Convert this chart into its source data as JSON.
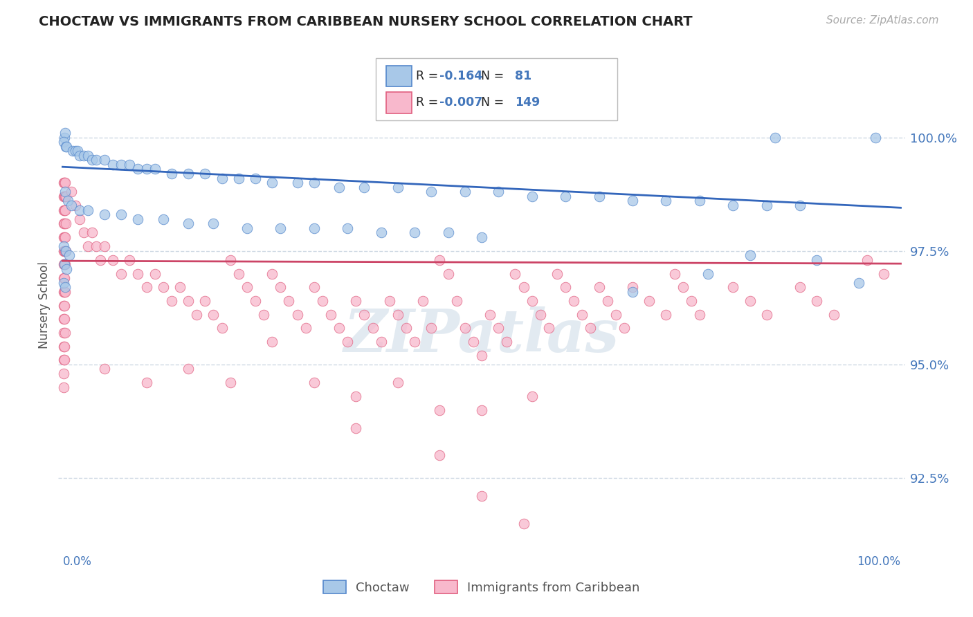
{
  "title": "CHOCTAW VS IMMIGRANTS FROM CARIBBEAN NURSERY SCHOOL CORRELATION CHART",
  "source": "Source: ZipAtlas.com",
  "ylabel": "Nursery School",
  "ytick_labels": [
    "92.5%",
    "95.0%",
    "97.5%",
    "100.0%"
  ],
  "ytick_values": [
    0.925,
    0.95,
    0.975,
    1.0
  ],
  "ymin": 0.908,
  "ymax": 1.018,
  "xmin": -0.005,
  "xmax": 1.005,
  "blue_r": -0.164,
  "blue_n": 81,
  "pink_r": -0.007,
  "pink_n": 149,
  "blue_fill": "#a8c8e8",
  "blue_edge": "#5588cc",
  "pink_fill": "#f8b8cc",
  "pink_edge": "#e06080",
  "blue_line_color": "#3366bb",
  "pink_line_color": "#cc4466",
  "watermark_color": "#d0dde8",
  "bg": "#ffffff",
  "grid_color": "#c8d4e0",
  "title_color": "#222222",
  "axis_tick_color": "#4477bb",
  "blue_line_y0": 0.9935,
  "blue_line_y1": 0.9845,
  "pink_line_y0": 0.9728,
  "pink_line_y1": 0.9722,
  "blue_dots": [
    [
      0.002,
      1.0
    ],
    [
      0.003,
      1.001
    ],
    [
      0.85,
      1.0
    ],
    [
      0.97,
      1.0
    ],
    [
      0.001,
      0.999
    ],
    [
      0.004,
      0.998
    ],
    [
      0.005,
      0.998
    ],
    [
      0.012,
      0.997
    ],
    [
      0.015,
      0.997
    ],
    [
      0.018,
      0.997
    ],
    [
      0.02,
      0.996
    ],
    [
      0.025,
      0.996
    ],
    [
      0.03,
      0.996
    ],
    [
      0.035,
      0.995
    ],
    [
      0.04,
      0.995
    ],
    [
      0.05,
      0.995
    ],
    [
      0.06,
      0.994
    ],
    [
      0.07,
      0.994
    ],
    [
      0.08,
      0.994
    ],
    [
      0.09,
      0.993
    ],
    [
      0.1,
      0.993
    ],
    [
      0.11,
      0.993
    ],
    [
      0.13,
      0.992
    ],
    [
      0.15,
      0.992
    ],
    [
      0.17,
      0.992
    ],
    [
      0.19,
      0.991
    ],
    [
      0.21,
      0.991
    ],
    [
      0.23,
      0.991
    ],
    [
      0.25,
      0.99
    ],
    [
      0.28,
      0.99
    ],
    [
      0.3,
      0.99
    ],
    [
      0.33,
      0.989
    ],
    [
      0.36,
      0.989
    ],
    [
      0.4,
      0.989
    ],
    [
      0.44,
      0.988
    ],
    [
      0.48,
      0.988
    ],
    [
      0.52,
      0.988
    ],
    [
      0.56,
      0.987
    ],
    [
      0.6,
      0.987
    ],
    [
      0.64,
      0.987
    ],
    [
      0.68,
      0.986
    ],
    [
      0.72,
      0.986
    ],
    [
      0.76,
      0.986
    ],
    [
      0.8,
      0.985
    ],
    [
      0.84,
      0.985
    ],
    [
      0.88,
      0.985
    ],
    [
      0.003,
      0.988
    ],
    [
      0.006,
      0.986
    ],
    [
      0.01,
      0.985
    ],
    [
      0.02,
      0.984
    ],
    [
      0.03,
      0.984
    ],
    [
      0.05,
      0.983
    ],
    [
      0.07,
      0.983
    ],
    [
      0.09,
      0.982
    ],
    [
      0.12,
      0.982
    ],
    [
      0.15,
      0.981
    ],
    [
      0.18,
      0.981
    ],
    [
      0.22,
      0.98
    ],
    [
      0.26,
      0.98
    ],
    [
      0.3,
      0.98
    ],
    [
      0.34,
      0.98
    ],
    [
      0.38,
      0.979
    ],
    [
      0.42,
      0.979
    ],
    [
      0.46,
      0.979
    ],
    [
      0.5,
      0.978
    ],
    [
      0.001,
      0.976
    ],
    [
      0.004,
      0.975
    ],
    [
      0.008,
      0.974
    ],
    [
      0.82,
      0.974
    ],
    [
      0.9,
      0.973
    ],
    [
      0.002,
      0.972
    ],
    [
      0.005,
      0.971
    ],
    [
      0.77,
      0.97
    ],
    [
      0.95,
      0.968
    ],
    [
      0.001,
      0.968
    ],
    [
      0.003,
      0.967
    ],
    [
      0.68,
      0.966
    ]
  ],
  "pink_dots": [
    [
      0.001,
      0.99
    ],
    [
      0.002,
      0.99
    ],
    [
      0.003,
      0.99
    ],
    [
      0.001,
      0.987
    ],
    [
      0.002,
      0.987
    ],
    [
      0.003,
      0.987
    ],
    [
      0.004,
      0.987
    ],
    [
      0.001,
      0.984
    ],
    [
      0.002,
      0.984
    ],
    [
      0.003,
      0.984
    ],
    [
      0.001,
      0.981
    ],
    [
      0.002,
      0.981
    ],
    [
      0.004,
      0.981
    ],
    [
      0.001,
      0.978
    ],
    [
      0.002,
      0.978
    ],
    [
      0.003,
      0.978
    ],
    [
      0.001,
      0.975
    ],
    [
      0.002,
      0.975
    ],
    [
      0.003,
      0.975
    ],
    [
      0.004,
      0.975
    ],
    [
      0.001,
      0.972
    ],
    [
      0.002,
      0.972
    ],
    [
      0.003,
      0.972
    ],
    [
      0.001,
      0.969
    ],
    [
      0.002,
      0.969
    ],
    [
      0.001,
      0.966
    ],
    [
      0.002,
      0.966
    ],
    [
      0.003,
      0.966
    ],
    [
      0.001,
      0.963
    ],
    [
      0.002,
      0.963
    ],
    [
      0.001,
      0.96
    ],
    [
      0.002,
      0.96
    ],
    [
      0.001,
      0.957
    ],
    [
      0.003,
      0.957
    ],
    [
      0.001,
      0.954
    ],
    [
      0.002,
      0.954
    ],
    [
      0.001,
      0.951
    ],
    [
      0.002,
      0.951
    ],
    [
      0.001,
      0.948
    ],
    [
      0.001,
      0.945
    ],
    [
      0.01,
      0.988
    ],
    [
      0.015,
      0.985
    ],
    [
      0.02,
      0.982
    ],
    [
      0.025,
      0.979
    ],
    [
      0.03,
      0.976
    ],
    [
      0.035,
      0.979
    ],
    [
      0.04,
      0.976
    ],
    [
      0.045,
      0.973
    ],
    [
      0.05,
      0.976
    ],
    [
      0.06,
      0.973
    ],
    [
      0.07,
      0.97
    ],
    [
      0.08,
      0.973
    ],
    [
      0.09,
      0.97
    ],
    [
      0.1,
      0.967
    ],
    [
      0.11,
      0.97
    ],
    [
      0.12,
      0.967
    ],
    [
      0.13,
      0.964
    ],
    [
      0.14,
      0.967
    ],
    [
      0.15,
      0.964
    ],
    [
      0.16,
      0.961
    ],
    [
      0.17,
      0.964
    ],
    [
      0.18,
      0.961
    ],
    [
      0.19,
      0.958
    ],
    [
      0.2,
      0.973
    ],
    [
      0.21,
      0.97
    ],
    [
      0.22,
      0.967
    ],
    [
      0.23,
      0.964
    ],
    [
      0.24,
      0.961
    ],
    [
      0.25,
      0.97
    ],
    [
      0.26,
      0.967
    ],
    [
      0.27,
      0.964
    ],
    [
      0.28,
      0.961
    ],
    [
      0.29,
      0.958
    ],
    [
      0.3,
      0.967
    ],
    [
      0.31,
      0.964
    ],
    [
      0.32,
      0.961
    ],
    [
      0.33,
      0.958
    ],
    [
      0.34,
      0.955
    ],
    [
      0.35,
      0.964
    ],
    [
      0.36,
      0.961
    ],
    [
      0.37,
      0.958
    ],
    [
      0.38,
      0.955
    ],
    [
      0.39,
      0.964
    ],
    [
      0.4,
      0.961
    ],
    [
      0.41,
      0.958
    ],
    [
      0.42,
      0.955
    ],
    [
      0.43,
      0.964
    ],
    [
      0.44,
      0.958
    ],
    [
      0.45,
      0.973
    ],
    [
      0.46,
      0.97
    ],
    [
      0.47,
      0.964
    ],
    [
      0.48,
      0.958
    ],
    [
      0.49,
      0.955
    ],
    [
      0.5,
      0.952
    ],
    [
      0.51,
      0.961
    ],
    [
      0.52,
      0.958
    ],
    [
      0.53,
      0.955
    ],
    [
      0.54,
      0.97
    ],
    [
      0.55,
      0.967
    ],
    [
      0.56,
      0.964
    ],
    [
      0.57,
      0.961
    ],
    [
      0.58,
      0.958
    ],
    [
      0.59,
      0.97
    ],
    [
      0.6,
      0.967
    ],
    [
      0.61,
      0.964
    ],
    [
      0.62,
      0.961
    ],
    [
      0.63,
      0.958
    ],
    [
      0.64,
      0.967
    ],
    [
      0.65,
      0.964
    ],
    [
      0.66,
      0.961
    ],
    [
      0.67,
      0.958
    ],
    [
      0.68,
      0.967
    ],
    [
      0.7,
      0.964
    ],
    [
      0.72,
      0.961
    ],
    [
      0.73,
      0.97
    ],
    [
      0.74,
      0.967
    ],
    [
      0.75,
      0.964
    ],
    [
      0.76,
      0.961
    ],
    [
      0.8,
      0.967
    ],
    [
      0.82,
      0.964
    ],
    [
      0.84,
      0.961
    ],
    [
      0.88,
      0.967
    ],
    [
      0.9,
      0.964
    ],
    [
      0.92,
      0.961
    ],
    [
      0.05,
      0.949
    ],
    [
      0.1,
      0.946
    ],
    [
      0.15,
      0.949
    ],
    [
      0.2,
      0.946
    ],
    [
      0.25,
      0.955
    ],
    [
      0.3,
      0.946
    ],
    [
      0.35,
      0.943
    ],
    [
      0.4,
      0.946
    ],
    [
      0.45,
      0.94
    ],
    [
      0.35,
      0.936
    ],
    [
      0.45,
      0.93
    ],
    [
      0.5,
      0.921
    ],
    [
      0.55,
      0.915
    ],
    [
      0.5,
      0.94
    ],
    [
      0.56,
      0.943
    ],
    [
      0.96,
      0.973
    ],
    [
      0.98,
      0.97
    ]
  ]
}
